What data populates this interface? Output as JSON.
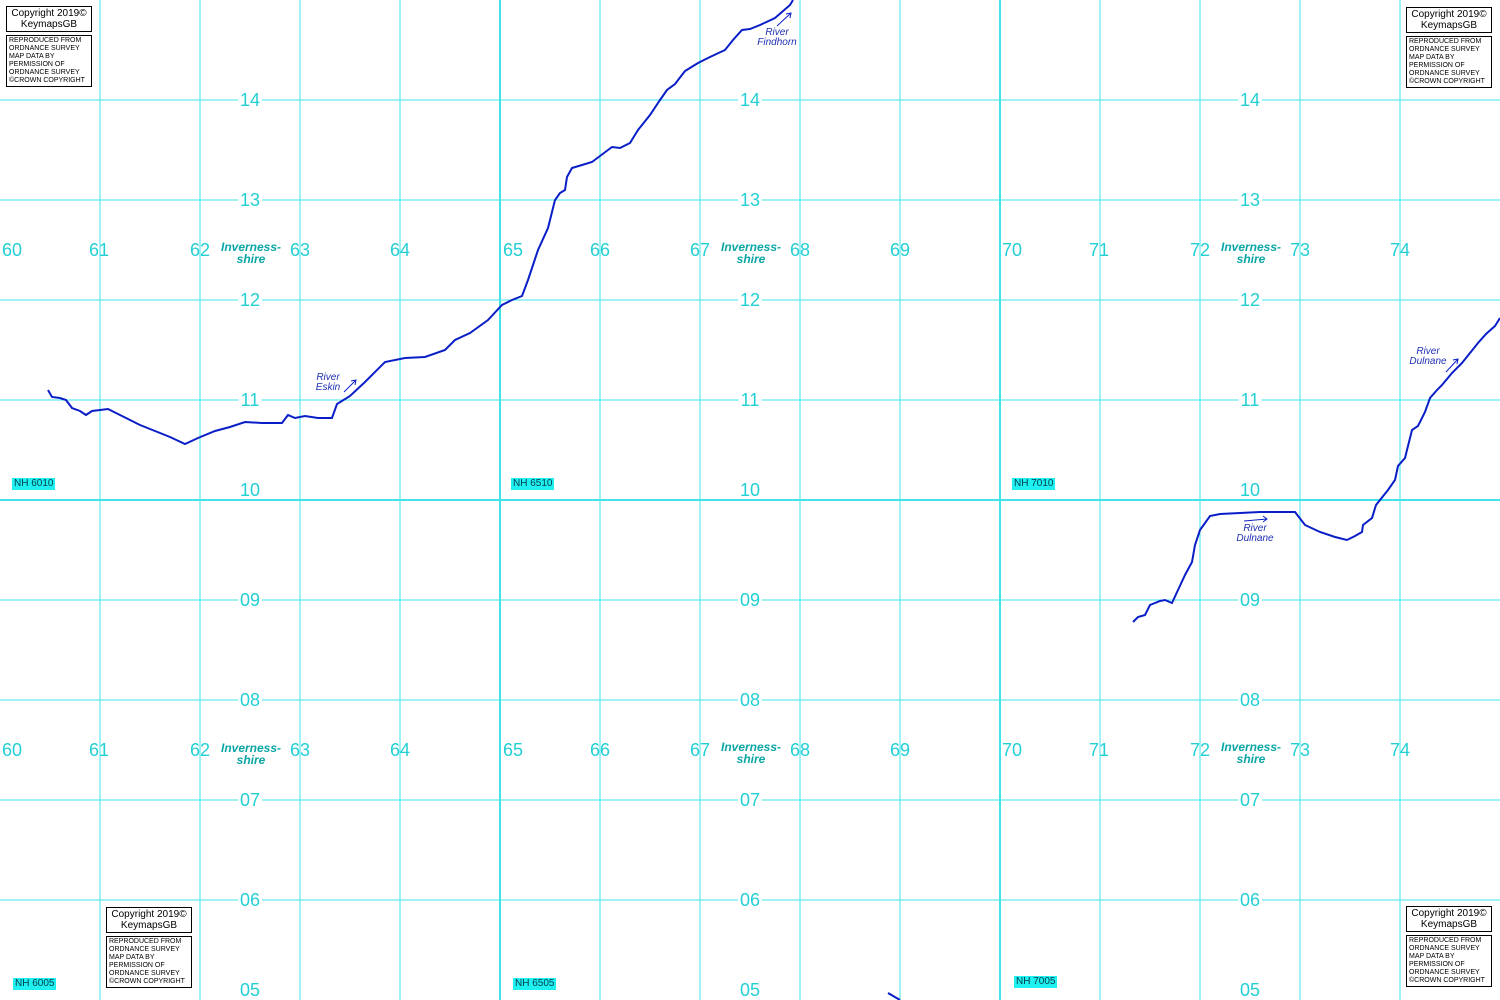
{
  "map": {
    "grid": {
      "x_labels": [
        "60",
        "61",
        "62",
        "63",
        "64",
        "65",
        "66",
        "67",
        "68",
        "69",
        "70",
        "71",
        "72",
        "73",
        "74"
      ],
      "y_labels": [
        "14",
        "13",
        "12",
        "11",
        "10",
        "09",
        "08",
        "07",
        "06",
        "05"
      ],
      "color": "#3fe3e8"
    },
    "tiles": [
      "NH 6010",
      "NH 6510",
      "NH 7010",
      "NH 6005",
      "NH 6505",
      "NH 7005"
    ],
    "region_label": [
      "Inverness-",
      "shire"
    ],
    "rivers": {
      "eskin": [
        "River",
        "Eskin"
      ],
      "findhorn": [
        "River",
        "Findhorn"
      ],
      "dulnane": [
        "River",
        "Dulnane"
      ]
    },
    "river_color": "#0a1ec8",
    "copyright": {
      "line1": "Copyright 2019©",
      "line2": "KeymapsGB",
      "notice": [
        "REPRODUCED FROM",
        "ORDNANCE SURVEY",
        "MAP DATA BY",
        "PERMISSION OF",
        "ORDNANCE SURVEY",
        "©CROWN COPYRIGHT"
      ]
    }
  }
}
